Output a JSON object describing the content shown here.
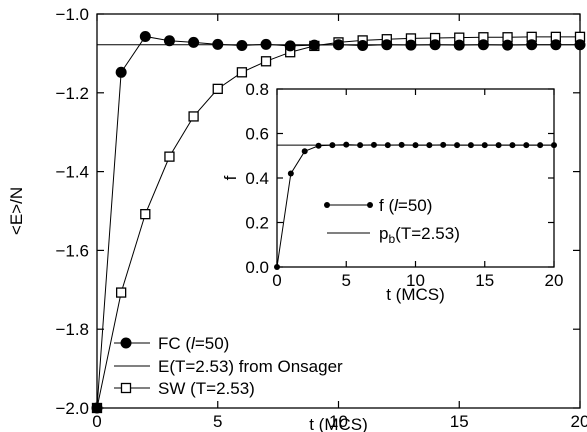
{
  "chart_data": [
    {
      "type": "line",
      "panel": "main",
      "xlabel": "t (MCS)",
      "ylabel": "<E>/N",
      "xlim": [
        0,
        20
      ],
      "ylim": [
        -2.0,
        -1.0
      ],
      "xticks": [
        0,
        5,
        10,
        15,
        20
      ],
      "yticks": [
        -2.0,
        -1.8,
        -1.6,
        -1.4,
        -1.2,
        -1.0
      ],
      "xtick_labels": [
        "0",
        "5",
        "10",
        "15",
        "20"
      ],
      "ytick_labels": [
        "−2.0",
        "−1.8",
        "−1.6",
        "−1.4",
        "−1.2",
        "−1.0"
      ],
      "grid": false,
      "legend_position": "bottom-left",
      "series": [
        {
          "name": "FC (l=50)",
          "legend_prefix": "FC (",
          "legend_italic": "l",
          "legend_suffix": "=50)",
          "marker": "filled-circle",
          "x": [
            0,
            1,
            2,
            3,
            4,
            5,
            6,
            7,
            8,
            9,
            10,
            11,
            12,
            13,
            14,
            15,
            16,
            17,
            18,
            19,
            20
          ],
          "y": [
            -2.0,
            -1.148,
            -1.057,
            -1.068,
            -1.072,
            -1.077,
            -1.08,
            -1.077,
            -1.081,
            -1.079,
            -1.078,
            -1.08,
            -1.078,
            -1.079,
            -1.078,
            -1.079,
            -1.078,
            -1.079,
            -1.078,
            -1.078,
            -1.078
          ]
        },
        {
          "name": "E(T=2.53) from Onsager",
          "marker": "none",
          "constant": -1.078
        },
        {
          "name": "SW (T=2.53)",
          "marker": "open-square",
          "x": [
            0,
            1,
            2,
            3,
            4,
            5,
            6,
            7,
            8,
            9,
            10,
            11,
            12,
            13,
            14,
            15,
            16,
            17,
            18,
            19,
            20
          ],
          "y": [
            -2.0,
            -1.707,
            -1.508,
            -1.362,
            -1.26,
            -1.19,
            -1.148,
            -1.12,
            -1.097,
            -1.081,
            -1.072,
            -1.067,
            -1.064,
            -1.062,
            -1.061,
            -1.06,
            -1.059,
            -1.059,
            -1.058,
            -1.058,
            -1.058
          ]
        }
      ]
    },
    {
      "type": "line",
      "panel": "inset",
      "xlabel": "t (MCS)",
      "ylabel": "f",
      "xlim": [
        0,
        20
      ],
      "ylim": [
        0.0,
        0.8
      ],
      "xticks": [
        0,
        5,
        10,
        15,
        20
      ],
      "yticks": [
        0.0,
        0.2,
        0.4,
        0.6,
        0.8
      ],
      "xtick_labels": [
        "0",
        "5",
        "10",
        "15",
        "20"
      ],
      "ytick_labels": [
        "0.0",
        "0.2",
        "0.4",
        "0.6",
        "0.8"
      ],
      "grid": false,
      "legend_position": "bottom-right",
      "series": [
        {
          "name": "f (l=50)",
          "legend_prefix": "f (",
          "legend_italic": "l",
          "legend_suffix": "=50)",
          "marker": "small-filled-circle",
          "x": [
            0,
            1,
            2,
            3,
            4,
            5,
            6,
            7,
            8,
            9,
            10,
            11,
            12,
            13,
            14,
            15,
            16,
            17,
            18,
            19,
            20
          ],
          "y": [
            0.0,
            0.42,
            0.52,
            0.545,
            0.548,
            0.55,
            0.548,
            0.549,
            0.548,
            0.549,
            0.548,
            0.548,
            0.549,
            0.548,
            0.548,
            0.548,
            0.548,
            0.548,
            0.548,
            0.548,
            0.548
          ]
        },
        {
          "name": "pb(T=2.53)",
          "legend_main": "p",
          "legend_sub": "b",
          "legend_suffix": "(T=2.53)",
          "marker": "none",
          "constant": 0.548
        }
      ]
    }
  ]
}
